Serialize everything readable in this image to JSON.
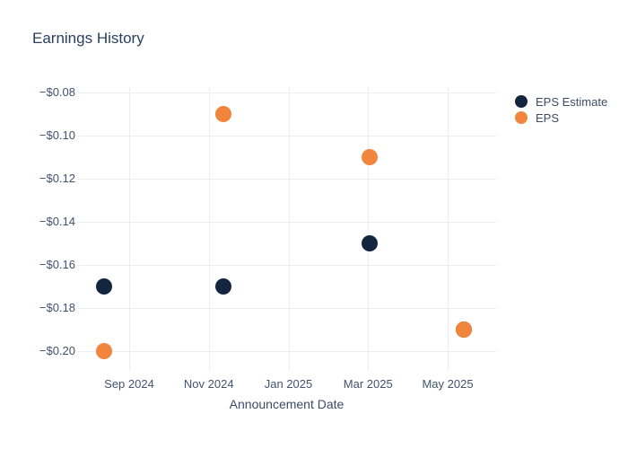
{
  "chart_data": {
    "type": "scatter",
    "title": "Earnings History",
    "xlabel": "Announcement Date",
    "ylabel": "",
    "grid": true,
    "legend_position": "right",
    "x_tick_labels": [
      "Sep 2024",
      "Nov 2024",
      "Jan 2025",
      "Mar 2025",
      "May 2025"
    ],
    "y_tick_labels": [
      "−$0.08",
      "−$0.10",
      "−$0.12",
      "−$0.14",
      "−$0.16",
      "−$0.18",
      "−$0.20"
    ],
    "y_tick_values": [
      -0.08,
      -0.1,
      -0.12,
      -0.14,
      -0.16,
      -0.18,
      -0.2
    ],
    "ylim": [
      -0.205,
      -0.077
    ],
    "series": [
      {
        "name": "EPS Estimate",
        "color": "#14263f",
        "points": [
          {
            "date": "2024-08-12",
            "value": -0.17
          },
          {
            "date": "2024-11-12",
            "value": -0.17
          },
          {
            "date": "2025-03-02",
            "value": -0.15
          },
          {
            "date": "2025-05-13",
            "value": -0.19
          }
        ]
      },
      {
        "name": "EPS",
        "color": "#f1853c",
        "points": [
          {
            "date": "2024-08-12",
            "value": -0.2
          },
          {
            "date": "2024-11-12",
            "value": -0.09
          },
          {
            "date": "2025-03-02",
            "value": -0.11
          },
          {
            "date": "2025-05-13",
            "value": -0.19
          }
        ]
      }
    ],
    "colors": {
      "background": "#ffffff",
      "gridline": "#e9eef4",
      "title_text": "#2a3f5f",
      "tick_text": "#42526f",
      "axis_title_text": "#3c4c68"
    }
  }
}
